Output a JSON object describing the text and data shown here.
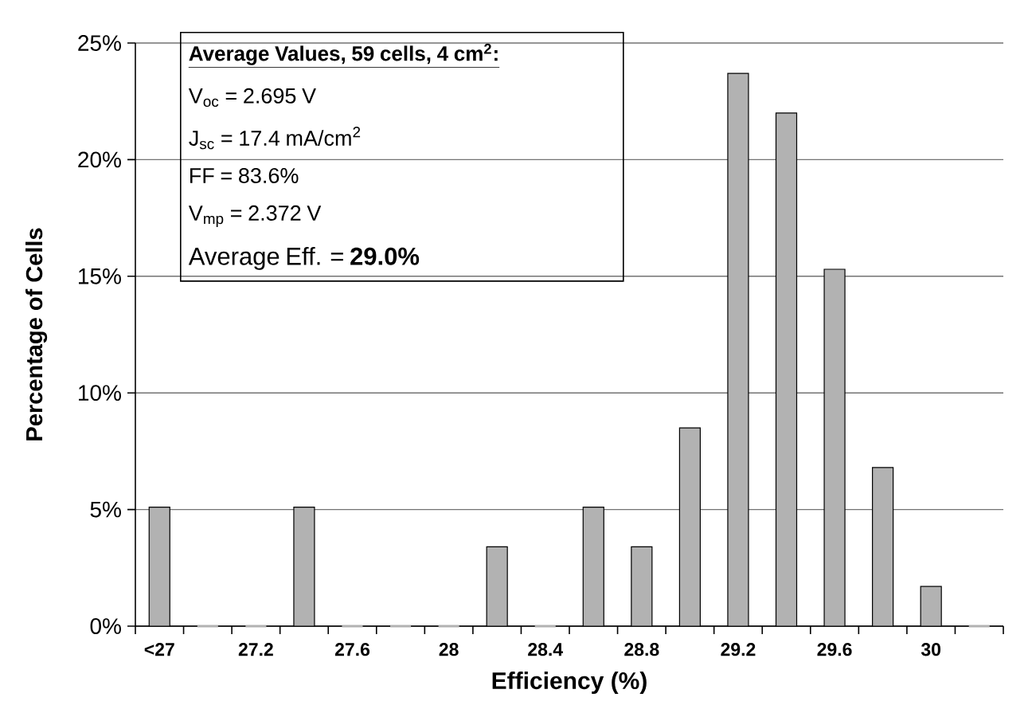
{
  "chart_data": {
    "type": "bar",
    "categories": [
      "<27",
      null,
      "27.2",
      null,
      "27.6",
      null,
      "28",
      null,
      "28.4",
      null,
      "28.8",
      null,
      "29.2",
      null,
      "29.6",
      null,
      "30",
      null
    ],
    "values": [
      5.1,
      0,
      0,
      5.1,
      0,
      0,
      0,
      3.4,
      0,
      5.1,
      3.4,
      8.5,
      23.7,
      22.0,
      15.3,
      6.8,
      1.7,
      0
    ],
    "color": "#b2b2b2",
    "ylim": [
      0,
      25
    ],
    "yticks": [
      {
        "value": 0,
        "label": "0%"
      },
      {
        "value": 5,
        "label": "5%"
      },
      {
        "value": 10,
        "label": "10%"
      },
      {
        "value": 15,
        "label": "15%"
      },
      {
        "value": 20,
        "label": "20%"
      },
      {
        "value": 25,
        "label": "25%"
      }
    ],
    "grid": "y",
    "xlabel": "Efficiency (%)",
    "ylabel": "Percentage of Cells",
    "annotations": [
      "Average Values, 59 cells, 4 cm$^{2}$:",
      "V$_{oc}$ = 2.695 V",
      "J$_{sc}$ = 17.4 mA/cm$^{2}$",
      "FF = 83.6%",
      "V$_{mp}$ = 2.372 V",
      "Average Eff. = **29.0%**"
    ]
  }
}
